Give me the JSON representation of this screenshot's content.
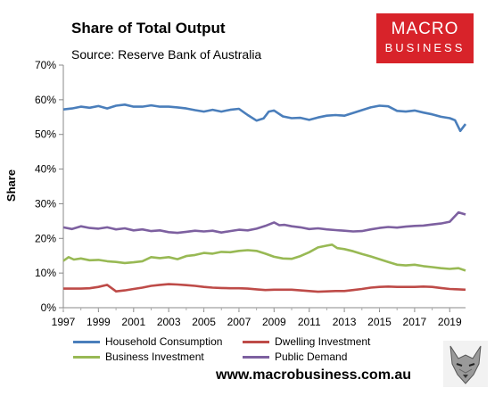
{
  "header": {
    "title": "Share of Total Output",
    "subtitle": "Source: Reserve Bank of Australia"
  },
  "logo": {
    "line1": "MACRO",
    "line2": "BUSINESS"
  },
  "footer": {
    "website": "www.macrobusiness.com.au"
  },
  "icons": {
    "logo_badge": "wolf-icon"
  },
  "chart_data": {
    "type": "line",
    "ylabel": "Share",
    "xlabel": "",
    "xlim": [
      1997,
      2019.9
    ],
    "ylim": [
      0,
      70
    ],
    "x_ticks": [
      "1997",
      "1999",
      "2001",
      "2003",
      "2005",
      "2007",
      "2009",
      "2011",
      "2013",
      "2015",
      "2017",
      "2019"
    ],
    "y_ticks": [
      "0%",
      "10%",
      "20%",
      "30%",
      "40%",
      "50%",
      "60%",
      "70%"
    ],
    "grid": false,
    "legend_position": "bottom",
    "series": [
      {
        "name": "Household Consumption",
        "color": "#4a7ebb",
        "points": [
          [
            1997.0,
            57.2
          ],
          [
            1997.5,
            57.5
          ],
          [
            1998.0,
            58.0
          ],
          [
            1998.5,
            57.7
          ],
          [
            1999.0,
            58.2
          ],
          [
            1999.5,
            57.5
          ],
          [
            2000.0,
            58.3
          ],
          [
            2000.5,
            58.6
          ],
          [
            2001.0,
            58.0
          ],
          [
            2001.5,
            58.0
          ],
          [
            2002.0,
            58.4
          ],
          [
            2002.5,
            58.0
          ],
          [
            2003.0,
            58.0
          ],
          [
            2003.5,
            57.8
          ],
          [
            2004.0,
            57.5
          ],
          [
            2004.5,
            57.0
          ],
          [
            2005.0,
            56.6
          ],
          [
            2005.5,
            57.1
          ],
          [
            2006.0,
            56.6
          ],
          [
            2006.5,
            57.1
          ],
          [
            2007.0,
            57.4
          ],
          [
            2007.5,
            55.6
          ],
          [
            2008.0,
            54.0
          ],
          [
            2008.4,
            54.6
          ],
          [
            2008.7,
            56.6
          ],
          [
            2009.0,
            56.9
          ],
          [
            2009.5,
            55.2
          ],
          [
            2010.0,
            54.7
          ],
          [
            2010.5,
            54.8
          ],
          [
            2011.0,
            54.2
          ],
          [
            2011.5,
            54.9
          ],
          [
            2012.0,
            55.4
          ],
          [
            2012.5,
            55.6
          ],
          [
            2013.0,
            55.4
          ],
          [
            2013.5,
            56.2
          ],
          [
            2014.0,
            57.0
          ],
          [
            2014.5,
            57.8
          ],
          [
            2015.0,
            58.3
          ],
          [
            2015.5,
            58.1
          ],
          [
            2016.0,
            56.8
          ],
          [
            2016.5,
            56.6
          ],
          [
            2017.0,
            56.9
          ],
          [
            2017.5,
            56.3
          ],
          [
            2018.0,
            55.8
          ],
          [
            2018.5,
            55.1
          ],
          [
            2019.0,
            54.7
          ],
          [
            2019.3,
            54.1
          ],
          [
            2019.6,
            51.0
          ],
          [
            2019.9,
            53.0
          ]
        ]
      },
      {
        "name": "Dwelling Investment",
        "color": "#be4b48",
        "points": [
          [
            1997.0,
            5.5
          ],
          [
            1997.5,
            5.5
          ],
          [
            1998.0,
            5.5
          ],
          [
            1998.5,
            5.6
          ],
          [
            1999.0,
            6.0
          ],
          [
            1999.5,
            6.6
          ],
          [
            2000.0,
            4.7
          ],
          [
            2000.5,
            5.0
          ],
          [
            2001.0,
            5.4
          ],
          [
            2001.5,
            5.8
          ],
          [
            2002.0,
            6.3
          ],
          [
            2002.5,
            6.6
          ],
          [
            2003.0,
            6.8
          ],
          [
            2003.5,
            6.7
          ],
          [
            2004.0,
            6.5
          ],
          [
            2004.5,
            6.3
          ],
          [
            2005.0,
            6.0
          ],
          [
            2005.5,
            5.8
          ],
          [
            2006.0,
            5.7
          ],
          [
            2006.5,
            5.6
          ],
          [
            2007.0,
            5.6
          ],
          [
            2007.5,
            5.5
          ],
          [
            2008.0,
            5.3
          ],
          [
            2008.5,
            5.1
          ],
          [
            2009.0,
            5.2
          ],
          [
            2009.5,
            5.2
          ],
          [
            2010.0,
            5.2
          ],
          [
            2010.5,
            5.0
          ],
          [
            2011.0,
            4.8
          ],
          [
            2011.5,
            4.6
          ],
          [
            2012.0,
            4.7
          ],
          [
            2012.5,
            4.8
          ],
          [
            2013.0,
            4.8
          ],
          [
            2013.5,
            5.1
          ],
          [
            2014.0,
            5.4
          ],
          [
            2014.5,
            5.8
          ],
          [
            2015.0,
            6.0
          ],
          [
            2015.5,
            6.1
          ],
          [
            2016.0,
            6.0
          ],
          [
            2016.5,
            6.0
          ],
          [
            2017.0,
            6.0
          ],
          [
            2017.5,
            6.1
          ],
          [
            2018.0,
            6.0
          ],
          [
            2018.5,
            5.7
          ],
          [
            2019.0,
            5.4
          ],
          [
            2019.5,
            5.3
          ],
          [
            2019.9,
            5.2
          ]
        ]
      },
      {
        "name": "Business Investment",
        "color": "#98b954",
        "points": [
          [
            1997.0,
            13.5
          ],
          [
            1997.3,
            14.6
          ],
          [
            1997.6,
            13.9
          ],
          [
            1998.0,
            14.2
          ],
          [
            1998.5,
            13.7
          ],
          [
            1999.0,
            13.8
          ],
          [
            1999.5,
            13.4
          ],
          [
            2000.0,
            13.2
          ],
          [
            2000.5,
            12.9
          ],
          [
            2001.0,
            13.1
          ],
          [
            2001.5,
            13.4
          ],
          [
            2002.0,
            14.6
          ],
          [
            2002.5,
            14.3
          ],
          [
            2003.0,
            14.6
          ],
          [
            2003.5,
            14.0
          ],
          [
            2004.0,
            14.9
          ],
          [
            2004.5,
            15.2
          ],
          [
            2005.0,
            15.8
          ],
          [
            2005.5,
            15.6
          ],
          [
            2006.0,
            16.1
          ],
          [
            2006.5,
            16.0
          ],
          [
            2007.0,
            16.4
          ],
          [
            2007.5,
            16.6
          ],
          [
            2008.0,
            16.4
          ],
          [
            2008.5,
            15.6
          ],
          [
            2009.0,
            14.7
          ],
          [
            2009.5,
            14.2
          ],
          [
            2010.0,
            14.1
          ],
          [
            2010.5,
            14.9
          ],
          [
            2011.0,
            16.0
          ],
          [
            2011.5,
            17.4
          ],
          [
            2012.0,
            17.9
          ],
          [
            2012.3,
            18.2
          ],
          [
            2012.6,
            17.2
          ],
          [
            2013.0,
            16.9
          ],
          [
            2013.5,
            16.3
          ],
          [
            2014.0,
            15.5
          ],
          [
            2014.5,
            14.8
          ],
          [
            2015.0,
            14.0
          ],
          [
            2015.5,
            13.2
          ],
          [
            2016.0,
            12.4
          ],
          [
            2016.5,
            12.2
          ],
          [
            2017.0,
            12.4
          ],
          [
            2017.5,
            12.0
          ],
          [
            2018.0,
            11.7
          ],
          [
            2018.5,
            11.4
          ],
          [
            2019.0,
            11.2
          ],
          [
            2019.5,
            11.4
          ],
          [
            2019.9,
            10.7
          ]
        ]
      },
      {
        "name": "Public Demand",
        "color": "#7d60a0",
        "points": [
          [
            1997.0,
            23.2
          ],
          [
            1997.5,
            22.7
          ],
          [
            1998.0,
            23.5
          ],
          [
            1998.5,
            23.0
          ],
          [
            1999.0,
            22.8
          ],
          [
            1999.5,
            23.2
          ],
          [
            2000.0,
            22.6
          ],
          [
            2000.5,
            22.9
          ],
          [
            2001.0,
            22.3
          ],
          [
            2001.5,
            22.6
          ],
          [
            2002.0,
            22.1
          ],
          [
            2002.5,
            22.3
          ],
          [
            2003.0,
            21.8
          ],
          [
            2003.5,
            21.6
          ],
          [
            2004.0,
            21.9
          ],
          [
            2004.5,
            22.2
          ],
          [
            2005.0,
            22.0
          ],
          [
            2005.5,
            22.2
          ],
          [
            2006.0,
            21.7
          ],
          [
            2006.5,
            22.1
          ],
          [
            2007.0,
            22.5
          ],
          [
            2007.5,
            22.3
          ],
          [
            2008.0,
            22.8
          ],
          [
            2008.5,
            23.6
          ],
          [
            2009.0,
            24.6
          ],
          [
            2009.3,
            23.8
          ],
          [
            2009.6,
            23.9
          ],
          [
            2010.0,
            23.5
          ],
          [
            2010.5,
            23.2
          ],
          [
            2011.0,
            22.7
          ],
          [
            2011.5,
            22.9
          ],
          [
            2012.0,
            22.6
          ],
          [
            2012.5,
            22.4
          ],
          [
            2013.0,
            22.2
          ],
          [
            2013.5,
            22.0
          ],
          [
            2014.0,
            22.1
          ],
          [
            2014.5,
            22.6
          ],
          [
            2015.0,
            23.0
          ],
          [
            2015.5,
            23.3
          ],
          [
            2016.0,
            23.1
          ],
          [
            2016.5,
            23.4
          ],
          [
            2017.0,
            23.6
          ],
          [
            2017.5,
            23.7
          ],
          [
            2018.0,
            24.0
          ],
          [
            2018.5,
            24.3
          ],
          [
            2019.0,
            24.8
          ],
          [
            2019.5,
            27.5
          ],
          [
            2019.9,
            26.9
          ]
        ]
      }
    ]
  }
}
